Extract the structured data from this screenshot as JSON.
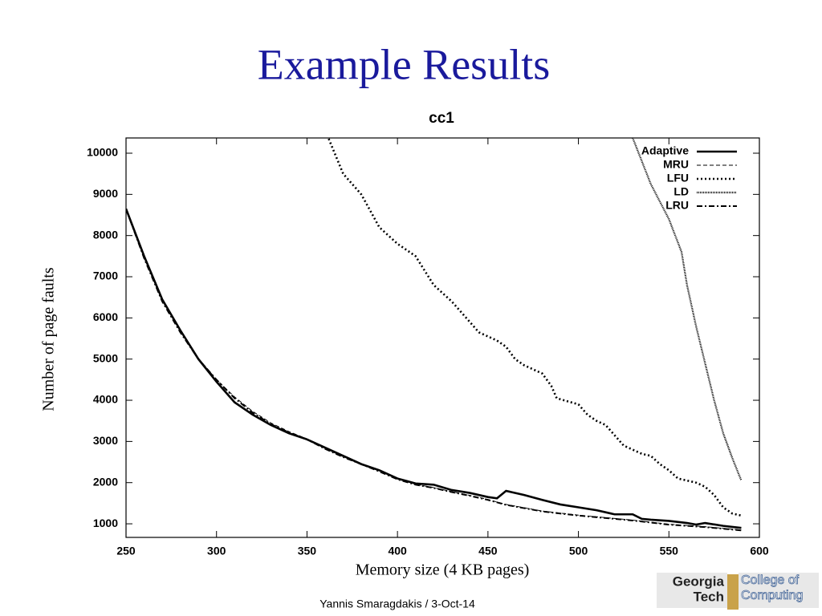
{
  "header": {
    "title": "Example Results"
  },
  "chart_data": {
    "type": "line",
    "title": "cc1",
    "x_label": "Memory size (4 KB pages)",
    "y_label": "Number of page faults",
    "xlim": [
      250,
      600
    ],
    "xticks": [
      250,
      300,
      350,
      400,
      450,
      500,
      550,
      600
    ],
    "ylim": [
      670,
      10370
    ],
    "yticks": [
      1000,
      2000,
      3000,
      4000,
      5000,
      6000,
      7000,
      8000,
      9000,
      10000
    ],
    "legend": "top-right",
    "series": [
      {
        "name": "Adaptive",
        "color": "#000000",
        "line_style": "solid",
        "x": [
          250,
          260,
          270,
          280,
          290,
          300,
          310,
          320,
          330,
          340,
          350,
          360,
          370,
          380,
          390,
          400,
          410,
          420,
          430,
          440,
          450,
          455,
          460,
          470,
          480,
          490,
          500,
          510,
          520,
          530,
          535,
          540,
          550,
          560,
          565,
          570,
          580,
          590
        ],
        "values": [
          8650,
          7500,
          6450,
          5700,
          5000,
          4450,
          3950,
          3650,
          3400,
          3200,
          3050,
          2850,
          2650,
          2450,
          2300,
          2100,
          1980,
          1950,
          1820,
          1750,
          1650,
          1620,
          1800,
          1700,
          1580,
          1470,
          1400,
          1330,
          1230,
          1230,
          1120,
          1100,
          1070,
          1020,
          980,
          1020,
          950,
          900
        ]
      },
      {
        "name": "MRU",
        "color": "#000000",
        "line_style": "dashed",
        "x": [
          250,
          260,
          270,
          280,
          290,
          300,
          310,
          320,
          330,
          340,
          350,
          360,
          370,
          380,
          390,
          400,
          410,
          420,
          430,
          440,
          450,
          460,
          470,
          480,
          490,
          500,
          510,
          520,
          530,
          540,
          550,
          560,
          570,
          580,
          590
        ],
        "values": [
          8650,
          7480,
          6420,
          5680,
          5020,
          4500,
          4080,
          3730,
          3450,
          3240,
          3060,
          2830,
          2630,
          2460,
          2280,
          2090,
          1960,
          1880,
          1780,
          1690,
          1590,
          1470,
          1390,
          1310,
          1260,
          1210,
          1170,
          1130,
          1090,
          1040,
          990,
          960,
          930,
          890,
          850
        ]
      },
      {
        "name": "LFU",
        "color": "#000000",
        "line_style": "dotted",
        "x": [
          362,
          370,
          380,
          385,
          390,
          400,
          410,
          420,
          430,
          440,
          445,
          450,
          455,
          460,
          465,
          470,
          475,
          480,
          485,
          488,
          500,
          505,
          510,
          515,
          520,
          525,
          530,
          535,
          540,
          545,
          550,
          555,
          560,
          565,
          570,
          575,
          580,
          585,
          590
        ],
        "values": [
          10350,
          9500,
          9000,
          8600,
          8200,
          7800,
          7500,
          6800,
          6400,
          5900,
          5650,
          5550,
          5450,
          5300,
          5000,
          4850,
          4750,
          4650,
          4350,
          4050,
          3900,
          3650,
          3500,
          3400,
          3150,
          2900,
          2800,
          2700,
          2650,
          2450,
          2300,
          2100,
          2050,
          2000,
          1900,
          1700,
          1400,
          1250,
          1200
        ]
      },
      {
        "name": "LD",
        "color": "#000000",
        "line_style": "fine-dotted",
        "x": [
          530,
          540,
          550,
          557,
          560,
          565,
          570,
          575,
          580,
          585,
          590
        ],
        "values": [
          10370,
          9250,
          8400,
          7600,
          6800,
          5800,
          4900,
          4000,
          3200,
          2600,
          2050
        ]
      },
      {
        "name": "LRU",
        "color": "#000000",
        "line_style": "dash-dot",
        "x": [
          250,
          260,
          270,
          280,
          290,
          300,
          310,
          320,
          330,
          340,
          350,
          360,
          370,
          380,
          390,
          400,
          410,
          420,
          430,
          440,
          450,
          460,
          470,
          480,
          490,
          500,
          510,
          520,
          530,
          540,
          550,
          560,
          570,
          580,
          590
        ],
        "values": [
          8650,
          7450,
          6400,
          5650,
          5000,
          4500,
          4050,
          3700,
          3420,
          3220,
          3050,
          2820,
          2620,
          2450,
          2270,
          2080,
          1950,
          1870,
          1770,
          1680,
          1580,
          1460,
          1380,
          1300,
          1250,
          1200,
          1160,
          1120,
          1080,
          1030,
          980,
          950,
          920,
          880,
          840
        ]
      }
    ]
  },
  "footer": {
    "text": "Yannis Smaragdakis / 3-Oct-14"
  },
  "logo": {
    "line1": "Georgia",
    "line2": "Tech",
    "line3": "College of",
    "line4": "Computing"
  }
}
